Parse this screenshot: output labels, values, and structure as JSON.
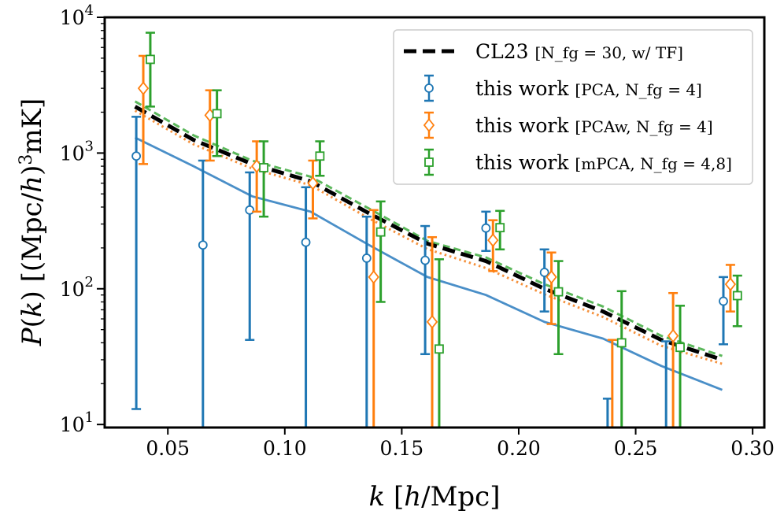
{
  "chart_data": {
    "type": "line",
    "xlabel": "k [h/Mpc]",
    "ylabel": "P(k) [(Mpc/h)³mK]",
    "xlim": [
      0.023,
      0.305
    ],
    "ylim": [
      9.5,
      10000
    ],
    "yscale": "log",
    "grid": false,
    "legend_position": "top-right",
    "x_ticks": [
      0.05,
      0.1,
      0.15,
      0.2,
      0.25,
      0.3
    ],
    "x_tick_labels": [
      "0.05",
      "0.10",
      "0.15",
      "0.20",
      "0.25",
      "0.30"
    ],
    "y_ticks": [
      10,
      100,
      1000,
      10000
    ],
    "y_tick_labels": [
      {
        "base": "10",
        "exp": "1"
      },
      {
        "base": "10",
        "exp": "2"
      },
      {
        "base": "10",
        "exp": "3"
      },
      {
        "base": "10",
        "exp": "4"
      }
    ],
    "colors": {
      "cl23": "#000000",
      "pca": "#1f77b4",
      "pcaw": "#ff7f0e",
      "mpca": "#2ca02c",
      "pca_model": "#4a8fc8",
      "pcaw_model": "#f5923e",
      "mpca_model": "#5cb85c"
    },
    "lines": [
      {
        "name": "CL23",
        "style": "dashed-thick",
        "color": "#000000",
        "x": [
          0.036,
          0.061,
          0.086,
          0.111,
          0.136,
          0.161,
          0.186,
          0.211,
          0.236,
          0.261,
          0.287
        ],
        "y": [
          2200,
          1250,
          830,
          620,
          360,
          215,
          160,
          100,
          68,
          42,
          30
        ]
      },
      {
        "name": "PCA model",
        "style": "solid",
        "color": "#4a8fc8",
        "x": [
          0.036,
          0.061,
          0.086,
          0.111,
          0.136,
          0.161,
          0.186,
          0.211,
          0.236,
          0.261,
          0.287
        ],
        "y": [
          1300,
          800,
          480,
          370,
          210,
          122,
          90,
          57,
          43,
          27,
          18
        ]
      },
      {
        "name": "PCAw model",
        "style": "dotted",
        "color": "#f5923e",
        "x": [
          0.036,
          0.061,
          0.086,
          0.111,
          0.136,
          0.161,
          0.186,
          0.211,
          0.236,
          0.261,
          0.287
        ],
        "y": [
          2050,
          1160,
          770,
          580,
          330,
          196,
          142,
          91,
          62,
          38,
          28
        ]
      },
      {
        "name": "mPCA model",
        "style": "dashed",
        "color": "#5cb85c",
        "x": [
          0.036,
          0.061,
          0.086,
          0.111,
          0.136,
          0.161,
          0.186,
          0.211,
          0.236,
          0.261,
          0.287
        ],
        "y": [
          2400,
          1350,
          880,
          670,
          390,
          225,
          170,
          108,
          74,
          45,
          32
        ]
      }
    ],
    "series": [
      {
        "name": "this work [PCA, N_fg = 4]",
        "marker": "circle",
        "color": "#1f77b4",
        "points": [
          {
            "x": 0.0365,
            "y": 950,
            "lo": 13,
            "hi": 1850
          },
          {
            "x": 0.065,
            "y": 210,
            "lo": 9,
            "hi": 880
          },
          {
            "x": 0.085,
            "y": 380,
            "lo": 42,
            "hi": 720
          },
          {
            "x": 0.109,
            "y": 220,
            "lo": 9,
            "hi": 560
          },
          {
            "x": 0.135,
            "y": 168,
            "lo": 9,
            "hi": 340
          },
          {
            "x": 0.16,
            "y": 162,
            "lo": 33,
            "hi": 290
          },
          {
            "x": 0.186,
            "y": 280,
            "lo": 190,
            "hi": 370
          },
          {
            "x": 0.211,
            "y": 132,
            "lo": 68,
            "hi": 195
          },
          {
            "x": 0.238,
            "y": 9,
            "lo": 9,
            "hi": 15.5
          },
          {
            "x": 0.263,
            "y": 9,
            "lo": 9,
            "hi": 41
          },
          {
            "x": 0.2875,
            "y": 81,
            "lo": 39,
            "hi": 122
          }
        ]
      },
      {
        "name": "this work [PCAw, N_fg = 4]",
        "marker": "diamond",
        "color": "#ff7f0e",
        "points": [
          {
            "x": 0.0395,
            "y": 3000,
            "lo": 830,
            "hi": 5200
          },
          {
            "x": 0.068,
            "y": 1900,
            "lo": 880,
            "hi": 2900
          },
          {
            "x": 0.088,
            "y": 800,
            "lo": 370,
            "hi": 1220
          },
          {
            "x": 0.112,
            "y": 600,
            "lo": 330,
            "hi": 880
          },
          {
            "x": 0.138,
            "y": 122,
            "lo": 9,
            "hi": 380
          },
          {
            "x": 0.163,
            "y": 57,
            "lo": 9,
            "hi": 240
          },
          {
            "x": 0.189,
            "y": 228,
            "lo": 135,
            "hi": 320
          },
          {
            "x": 0.214,
            "y": 122,
            "lo": 55,
            "hi": 185
          },
          {
            "x": 0.24,
            "y": 9,
            "lo": 9,
            "hi": 42
          },
          {
            "x": 0.266,
            "y": 45,
            "lo": 9,
            "hi": 93
          },
          {
            "x": 0.2905,
            "y": 108,
            "lo": 68,
            "hi": 150
          }
        ]
      },
      {
        "name": "this work [mPCA, N_fg = 4,8]",
        "marker": "square",
        "color": "#2ca02c",
        "points": [
          {
            "x": 0.0425,
            "y": 4900,
            "lo": 2200,
            "hi": 7700
          },
          {
            "x": 0.071,
            "y": 1950,
            "lo": 950,
            "hi": 2900
          },
          {
            "x": 0.091,
            "y": 780,
            "lo": 340,
            "hi": 1220
          },
          {
            "x": 0.115,
            "y": 950,
            "lo": 680,
            "hi": 1220
          },
          {
            "x": 0.141,
            "y": 262,
            "lo": 80,
            "hi": 440
          },
          {
            "x": 0.166,
            "y": 36,
            "lo": 9,
            "hi": 165
          },
          {
            "x": 0.192,
            "y": 282,
            "lo": 195,
            "hi": 375
          },
          {
            "x": 0.217,
            "y": 95,
            "lo": 33,
            "hi": 160
          },
          {
            "x": 0.244,
            "y": 40,
            "lo": 9,
            "hi": 96
          },
          {
            "x": 0.269,
            "y": 37,
            "lo": 9,
            "hi": 75
          },
          {
            "x": 0.2935,
            "y": 89,
            "lo": 53,
            "hi": 125
          }
        ]
      }
    ],
    "legend": [
      {
        "label": "CL23",
        "sub": "[N_fg = 30, w/ TF]",
        "kind": "line",
        "color": "#000000"
      },
      {
        "label": "this work",
        "sub": "[PCA, N_fg = 4]",
        "kind": "circle",
        "color": "#1f77b4"
      },
      {
        "label": "this work",
        "sub": "[PCAw, N_fg = 4]",
        "kind": "diamond",
        "color": "#ff7f0e"
      },
      {
        "label": "this work",
        "sub": "[mPCA, N_fg = 4,8]",
        "kind": "square",
        "color": "#2ca02c"
      }
    ]
  }
}
